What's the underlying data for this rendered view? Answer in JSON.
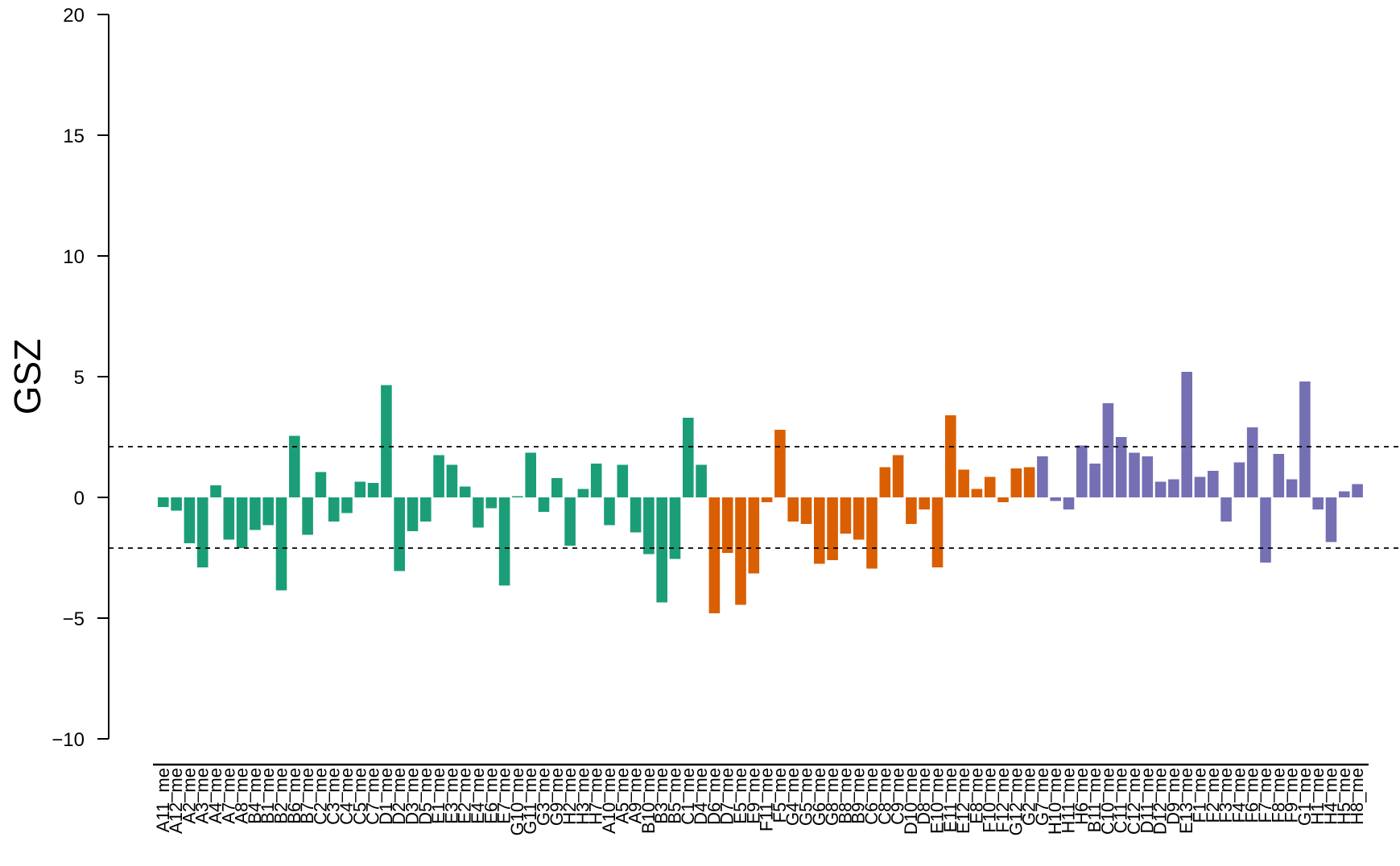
{
  "chart_data": {
    "type": "bar",
    "title": "",
    "xlabel": "",
    "ylabel": "GSZ",
    "ylim": [
      -10,
      20
    ],
    "yticks": [
      -10,
      -5,
      0,
      5,
      10,
      15,
      20
    ],
    "ytick_labels": [
      "−10",
      "−5",
      "0",
      "5",
      "10",
      "15",
      "20"
    ],
    "threshold_lines": [
      2.1,
      -2.1
    ],
    "grid": false,
    "legend": "none",
    "groups": [
      {
        "color": "#1b9e77",
        "count": 42
      },
      {
        "color": "#d95f02",
        "count": 25
      },
      {
        "color": "#7570b3",
        "count": 25
      }
    ],
    "categories": [
      "A11_me",
      "A12_me",
      "A2_me",
      "A3_me",
      "A4_me",
      "A7_me",
      "A8_me",
      "B4_me",
      "B1_me",
      "B2_me",
      "B6_me",
      "B7_me",
      "C2_me",
      "C3_me",
      "C4_me",
      "C5_me",
      "C7_me",
      "D1_me",
      "D2_me",
      "D3_me",
      "D5_me",
      "E1_me",
      "E3_me",
      "E2_me",
      "E4_me",
      "E6_me",
      "E7_me",
      "G10_me",
      "G11_me",
      "G3_me",
      "G9_me",
      "H2_me",
      "H3_me",
      "H7_me",
      "A10_me",
      "A5_me",
      "A9_me",
      "B10_me",
      "B3_me",
      "B5_me",
      "C1_me",
      "D4_me",
      "D6_me",
      "D7_me",
      "E5_me",
      "E9_me",
      "F11_me",
      "F5_me",
      "G4_me",
      "G5_me",
      "G6_me",
      "G8_me",
      "B8_me",
      "B9_me",
      "C6_me",
      "C8_me",
      "C9_me",
      "D10_me",
      "D8_me",
      "E10_me",
      "E11_me",
      "E12_me",
      "E8_me",
      "F10_me",
      "F12_me",
      "G12_me",
      "G2_me",
      "G7_me",
      "H10_me",
      "H11_me",
      "H6_me",
      "B11_me",
      "C10_me",
      "C11_me",
      "C12_me",
      "D11_me",
      "D12_me",
      "D9_me",
      "E13_me",
      "F1_me",
      "F2_me",
      "F3_me",
      "F4_me",
      "F6_me",
      "F7_me",
      "F8_me",
      "F9_me",
      "G1_me",
      "H1_me",
      "H4_me",
      "H5_me",
      "H8_me"
    ],
    "values": [
      -0.4,
      -0.55,
      -1.9,
      -2.9,
      0.5,
      -1.75,
      -2.1,
      -1.35,
      -1.15,
      -3.85,
      2.55,
      -1.55,
      1.05,
      -1.0,
      -0.65,
      0.65,
      0.6,
      4.65,
      -3.05,
      -1.4,
      -1.0,
      1.75,
      1.35,
      0.45,
      -1.25,
      -0.45,
      -3.65,
      0.05,
      1.85,
      -0.6,
      0.8,
      -2.0,
      0.35,
      1.4,
      -1.15,
      1.35,
      -1.45,
      -2.35,
      -4.35,
      -2.55,
      3.3,
      1.35,
      -4.8,
      -2.3,
      -4.45,
      -3.15,
      -0.2,
      2.8,
      -1.0,
      -1.1,
      -2.75,
      -2.6,
      -1.5,
      -1.75,
      -2.95,
      1.25,
      1.75,
      -1.1,
      -0.5,
      -2.9,
      3.4,
      1.15,
      0.35,
      0.85,
      -0.2,
      1.2,
      1.25,
      1.7,
      -0.15,
      -0.5,
      2.15,
      1.4,
      3.9,
      2.5,
      1.85,
      1.7,
      0.65,
      0.75,
      5.2,
      0.85,
      1.1,
      -1.0,
      1.45,
      2.9,
      -2.7,
      1.8,
      0.75,
      4.8,
      -0.5,
      -1.85,
      0.25,
      0.55
    ]
  }
}
